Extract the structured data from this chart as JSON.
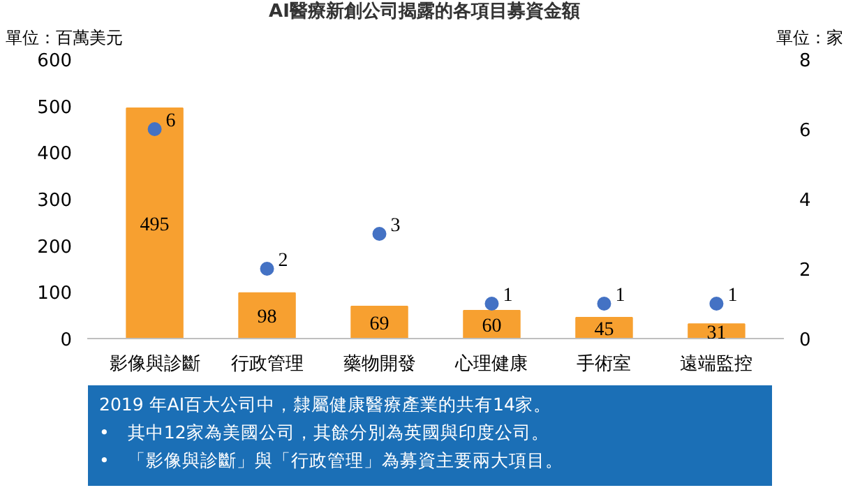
{
  "chart_data": {
    "type": "bar",
    "title": "AI醫療新創公司揭露的各項目募資金額",
    "ylabel": "單位：百萬美元",
    "y2label": "單位：家",
    "categories": [
      "影像與診斷",
      "行政管理",
      "藥物開發",
      "心理健康",
      "手術室",
      "遠端監控"
    ],
    "series": [
      {
        "color": "#f7a030",
        "values": [
          495,
          98,
          69,
          60,
          45,
          31
        ]
      },
      {
        "type": "scatter",
        "axis": "y2",
        "color": "#4472c4",
        "marker": "circle",
        "values": [
          6,
          2,
          3,
          1,
          1,
          1
        ]
      }
    ],
    "ylim": [
      0,
      600
    ],
    "yticks": [
      0,
      100,
      200,
      300,
      400,
      500,
      600
    ],
    "y2lim": [
      0,
      8
    ],
    "y2ticks": [
      0,
      2,
      4,
      6,
      8
    ],
    "data_labels": true,
    "grid": false,
    "annotations": [
      "2019 年AI百大公司中，隸屬健康醫療產業的共有14家。",
      "•　其中12家為美國公司，其餘分別為英國與印度公司。",
      "•　「影像與診斷」與「行政管理」為募資主要兩大項目。"
    ]
  }
}
